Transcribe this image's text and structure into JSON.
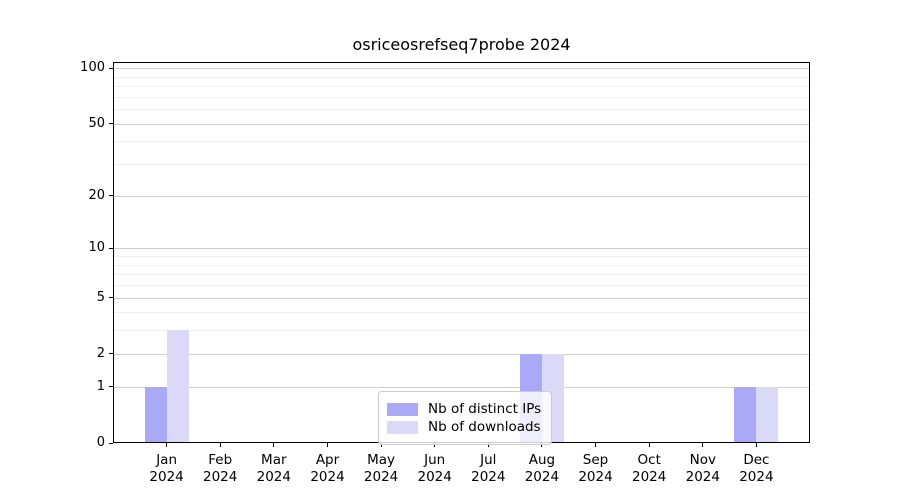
{
  "chart_data": {
    "type": "bar",
    "title": "osriceosrefseq7probe 2024",
    "categories": [
      "Jan",
      "Feb",
      "Mar",
      "Apr",
      "May",
      "Jun",
      "Jul",
      "Aug",
      "Sep",
      "Oct",
      "Nov",
      "Dec"
    ],
    "category_sublabel": "2024",
    "series": [
      {
        "name": "Nb of distinct IPs",
        "color": "#a9a9f5",
        "values": [
          1,
          0,
          0,
          0,
          0,
          0,
          0,
          2,
          0,
          0,
          0,
          1
        ]
      },
      {
        "name": "Nb of downloads",
        "color": "#dadaf8",
        "values": [
          3,
          0,
          0,
          0,
          0,
          0,
          0,
          2,
          0,
          0,
          0,
          1
        ]
      }
    ],
    "xlabel": "",
    "ylabel": "",
    "yscale": "log10(1+x)",
    "ylim": [
      0,
      108
    ],
    "yticks_major": [
      0,
      1,
      2,
      5,
      10,
      20,
      50,
      100
    ],
    "yticks_minor": [
      3,
      4,
      6,
      7,
      8,
      9,
      30,
      40,
      60,
      70,
      80,
      90
    ],
    "grid": "horizontal",
    "legend_position": "lower-center-inside"
  },
  "colors": {
    "background": "#ffffff",
    "grid_major": "#cfcfcf",
    "grid_minor": "#efefef",
    "spine": "#000000",
    "legend_border": "#cccccc"
  }
}
